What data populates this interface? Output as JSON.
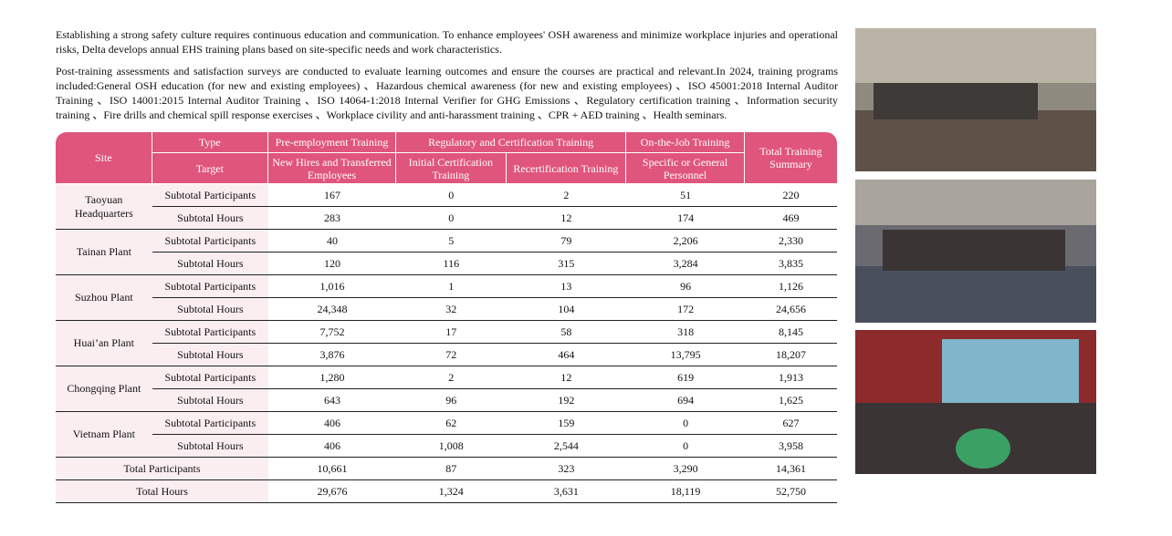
{
  "paragraphs": [
    "Establishing a strong safety culture requires continuous education and communication. To enhance employees' OSH awareness and minimize workplace injuries and operational risks, Delta develops annual EHS training plans based on site-specific needs and work characteristics.",
    "Post-training assessments and satisfaction surveys are conducted to evaluate learning outcomes and ensure the courses are practical and relevant.In 2024, training programs included:General OSH education (for new and existing employees) 、Hazardous chemical awareness (for new and existing employees) 、ISO 45001:2018 Internal Auditor Training 、ISO 14001:2015 Internal Auditor Training 、ISO 14064-1:2018 Internal Verifier for GHG Emissions 、Regulatory certification training 、Information security training 、Fire drills and chemical spill response exercises 、Workplace civility and anti-harassment training 、CPR + AED training 、Health seminars."
  ],
  "table": {
    "head_top": [
      "Site",
      "Type",
      "Pre-employment Training",
      "Regulatory and Certification Training",
      "On-the-Job Training",
      "Total Training Summary"
    ],
    "head_bottom": [
      "Target",
      "New Hires and Transferred Employees",
      "Initial Certification Training",
      "Recertification Training",
      "Specific or General Personnel"
    ],
    "groups": [
      {
        "site": "Taoyuan Headquarters",
        "rows": [
          {
            "label": "Subtotal Participants",
            "values": [
              "167",
              "0",
              "2",
              "51",
              "220"
            ]
          },
          {
            "label": "Subtotal Hours",
            "values": [
              "283",
              "0",
              "12",
              "174",
              "469"
            ]
          }
        ]
      },
      {
        "site": "Tainan Plant",
        "rows": [
          {
            "label": "Subtotal Participants",
            "values": [
              "40",
              "5",
              "79",
              "2,206",
              "2,330"
            ]
          },
          {
            "label": "Subtotal Hours",
            "values": [
              "120",
              "116",
              "315",
              "3,284",
              "3,835"
            ]
          }
        ]
      },
      {
        "site": "Suzhou Plant",
        "rows": [
          {
            "label": "Subtotal Participants",
            "values": [
              "1,016",
              "1",
              "13",
              "96",
              "1,126"
            ]
          },
          {
            "label": "Subtotal Hours",
            "values": [
              "24,348",
              "32",
              "104",
              "172",
              "24,656"
            ]
          }
        ]
      },
      {
        "site": "Huai’an Plant",
        "rows": [
          {
            "label": "Subtotal Participants",
            "values": [
              "7,752",
              "17",
              "58",
              "318",
              "8,145"
            ]
          },
          {
            "label": "Subtotal Hours",
            "values": [
              "3,876",
              "72",
              "464",
              "13,795",
              "18,207"
            ]
          }
        ]
      },
      {
        "site": "Chongqing Plant",
        "rows": [
          {
            "label": "Subtotal Participants",
            "values": [
              "1,280",
              "2",
              "12",
              "619",
              "1,913"
            ]
          },
          {
            "label": "Subtotal Hours",
            "values": [
              "643",
              "96",
              "192",
              "694",
              "1,625"
            ]
          }
        ]
      },
      {
        "site": "Vietnam Plant",
        "rows": [
          {
            "label": "Subtotal Participants",
            "values": [
              "406",
              "62",
              "159",
              "0",
              "627"
            ]
          },
          {
            "label": "Subtotal Hours",
            "values": [
              "406",
              "1,008",
              "2,544",
              "0",
              "3,958"
            ]
          }
        ]
      }
    ],
    "totals": [
      {
        "label": "Total Participants",
        "values": [
          "10,661",
          "87",
          "323",
          "3,290",
          "14,361"
        ]
      },
      {
        "label": "Total Hours",
        "values": [
          "29,676",
          "1,324",
          "3,631",
          "18,119",
          "52,750"
        ]
      }
    ]
  }
}
